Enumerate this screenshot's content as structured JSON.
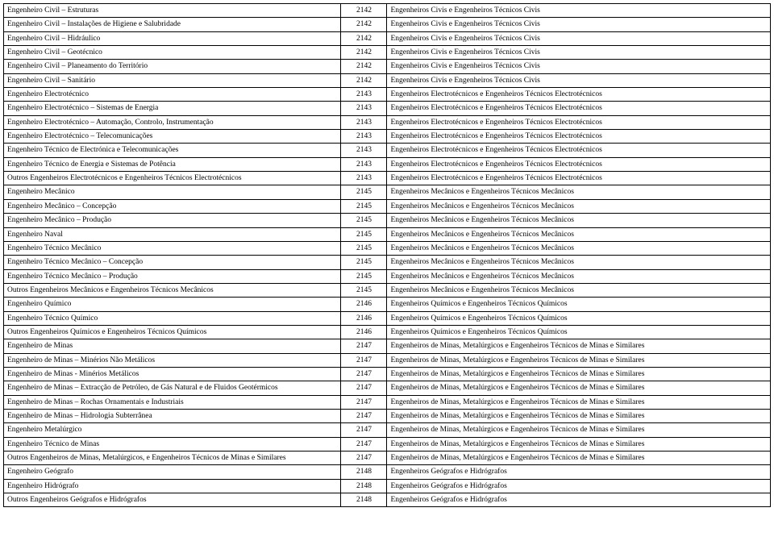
{
  "rows": [
    {
      "profession": "Engenheiro Civil – Estruturas",
      "code": "2142",
      "category": "Engenheiros Civis e Engenheiros Técnicos Civis"
    },
    {
      "profession": "Engenheiro Civil – Instalações de Higiene e Salubridade",
      "code": "2142",
      "category": "Engenheiros Civis e Engenheiros Técnicos Civis"
    },
    {
      "profession": "Engenheiro Civil – Hidráulico",
      "code": "2142",
      "category": "Engenheiros Civis e Engenheiros Técnicos Civis"
    },
    {
      "profession": "Engenheiro Civil – Geotécnico",
      "code": "2142",
      "category": "Engenheiros Civis e Engenheiros Técnicos Civis"
    },
    {
      "profession": "Engenheiro Civil – Planeamento do Território",
      "code": "2142",
      "category": "Engenheiros Civis e Engenheiros Técnicos Civis"
    },
    {
      "profession": "Engenheiro Civil – Sanitário",
      "code": "2142",
      "category": "Engenheiros Civis e Engenheiros Técnicos Civis"
    },
    {
      "profession": "Engenheiro Electrotécnico",
      "code": "2143",
      "category": "Engenheiros Electrotécnicos e Engenheiros Técnicos Electrotécnicos"
    },
    {
      "profession": "Engenheiro Electrotécnico – Sistemas de Energia",
      "code": "2143",
      "category": "Engenheiros Electrotécnicos e Engenheiros Técnicos Electrotécnicos"
    },
    {
      "profession": "Engenheiro Electrotécnico – Automação, Controlo, Instrumentação",
      "code": "2143",
      "category": "Engenheiros Electrotécnicos e Engenheiros Técnicos Electrotécnicos"
    },
    {
      "profession": "Engenheiro Electrotécnico – Telecomunicações",
      "code": "2143",
      "category": "Engenheiros Electrotécnicos e Engenheiros Técnicos Electrotécnicos"
    },
    {
      "profession": "Engenheiro Técnico de Electrónica e Telecomunicações",
      "code": "2143",
      "category": "Engenheiros Electrotécnicos e Engenheiros Técnicos Electrotécnicos"
    },
    {
      "profession": "Engenheiro Técnico de Energia e Sistemas de Potência",
      "code": "2143",
      "category": "Engenheiros Electrotécnicos e Engenheiros Técnicos Electrotécnicos"
    },
    {
      "profession": "Outros Engenheiros Electrotécnicos e Engenheiros Técnicos Electrotécnicos",
      "code": "2143",
      "category": "Engenheiros Electrotécnicos e Engenheiros Técnicos Electrotécnicos"
    },
    {
      "profession": "Engenheiro Mecânico",
      "code": "2145",
      "category": "Engenheiros Mecânicos e Engenheiros Técnicos Mecânicos"
    },
    {
      "profession": "Engenheiro Mecânico – Concepção",
      "code": "2145",
      "category": "Engenheiros Mecânicos e Engenheiros Técnicos Mecânicos"
    },
    {
      "profession": "Engenheiro Mecânico – Produção",
      "code": "2145",
      "category": "Engenheiros Mecânicos e Engenheiros Técnicos Mecânicos"
    },
    {
      "profession": "Engenheiro Naval",
      "code": "2145",
      "category": "Engenheiros Mecânicos e Engenheiros Técnicos Mecânicos"
    },
    {
      "profession": "Engenheiro Técnico Mecânico",
      "code": "2145",
      "category": "Engenheiros Mecânicos e Engenheiros Técnicos Mecânicos"
    },
    {
      "profession": "Engenheiro Técnico Mecânico – Concepção",
      "code": "2145",
      "category": "Engenheiros Mecânicos e Engenheiros Técnicos Mecânicos"
    },
    {
      "profession": "Engenheiro Técnico Mecânico – Produção",
      "code": "2145",
      "category": "Engenheiros Mecânicos e Engenheiros Técnicos Mecânicos"
    },
    {
      "profession": "Outros Engenheiros Mecânicos e Engenheiros Técnicos Mecânicos",
      "code": "2145",
      "category": "Engenheiros Mecânicos e Engenheiros Técnicos Mecânicos"
    },
    {
      "profession": "Engenheiro Químico",
      "code": "2146",
      "category": "Engenheiros Químicos e Engenheiros Técnicos Químicos"
    },
    {
      "profession": "Engenheiro Técnico Químico",
      "code": "2146",
      "category": "Engenheiros Químicos e Engenheiros Técnicos Químicos"
    },
    {
      "profession": "Outros Engenheiros Químicos e Engenheiros Técnicos Químicos",
      "code": "2146",
      "category": "Engenheiros Químicos e Engenheiros Técnicos Químicos"
    },
    {
      "profession": "Engenheiro de Minas",
      "code": "2147",
      "category": "Engenheiros de Minas, Metalúrgicos e Engenheiros Técnicos de Minas e Similares"
    },
    {
      "profession": "Engenheiro de Minas – Minérios Não Metálicos",
      "code": "2147",
      "category": "Engenheiros de Minas, Metalúrgicos e Engenheiros Técnicos de Minas e Similares"
    },
    {
      "profession": "Engenheiro de Minas - Minérios Metálicos",
      "code": "2147",
      "category": "Engenheiros de Minas, Metalúrgicos e Engenheiros Técnicos de Minas e Similares"
    },
    {
      "profession": "Engenheiro de Minas – Extracção de Petróleo, de Gás Natural e de Fluidos Geotérmicos",
      "code": "2147",
      "category": "Engenheiros de Minas, Metalúrgicos e Engenheiros Técnicos de Minas e Similares"
    },
    {
      "profession": "Engenheiro de Minas – Rochas Ornamentais e Industriais",
      "code": "2147",
      "category": "Engenheiros de Minas, Metalúrgicos e Engenheiros Técnicos de Minas e Similares"
    },
    {
      "profession": "Engenheiro de Minas – Hidrologia Subterrânea",
      "code": "2147",
      "category": "Engenheiros de Minas, Metalúrgicos e Engenheiros Técnicos de Minas e Similares"
    },
    {
      "profession": "Engenheiro Metalúrgico",
      "code": "2147",
      "category": "Engenheiros de Minas, Metalúrgicos e Engenheiros Técnicos de Minas e Similares"
    },
    {
      "profession": "Engenheiro Técnico de Minas",
      "code": "2147",
      "category": "Engenheiros de Minas, Metalúrgicos e Engenheiros Técnicos de Minas e Similares"
    },
    {
      "profession": "Outros Engenheiros de Minas, Metalúrgicos, e Engenheiros Técnicos de Minas e Similares",
      "code": "2147",
      "category": "Engenheiros de Minas, Metalúrgicos e Engenheiros Técnicos de Minas e Similares"
    },
    {
      "profession": "Engenheiro Geógrafo",
      "code": "2148",
      "category": "Engenheiros Geógrafos e Hidrógrafos"
    },
    {
      "profession": "Engenheiro Hidrógrafo",
      "code": "2148",
      "category": "Engenheiros Geógrafos e Hidrógrafos"
    },
    {
      "profession": "Outros Engenheiros Geógrafos e Hidrógrafos",
      "code": "2148",
      "category": "Engenheiros Geógrafos e Hidrógrafos"
    }
  ]
}
